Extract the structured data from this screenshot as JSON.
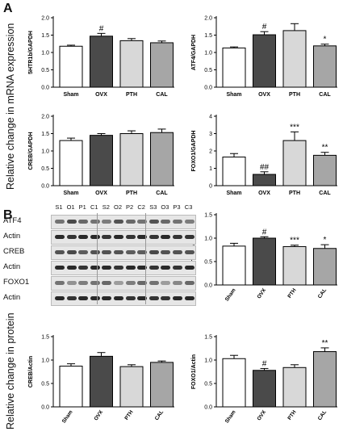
{
  "panels": {
    "a": "A",
    "b": "B"
  },
  "ylabels": {
    "a": "Relative change in mRNA expression",
    "b": "Relative change in protein"
  },
  "blot": {
    "lanes": [
      "S1",
      "O1",
      "P1",
      "C1",
      "S2",
      "O2",
      "P2",
      "C2",
      "S3",
      "O3",
      "P3",
      "C3"
    ],
    "rows": [
      "ATF4",
      "Actin",
      "CREB",
      "Actin",
      "FOXO1",
      "Actin"
    ]
  },
  "colors": {
    "Sham": "#ffffff",
    "OVX": "#4a4a4a",
    "PTH": "#d8d8d8",
    "CAL": "#a6a6a6"
  },
  "chart_data": [
    {
      "id": "htr1b",
      "type": "bar",
      "ylabel": "5HTR1b/GAPDH",
      "ylim": [
        0,
        2
      ],
      "yticks": [
        "0.0",
        "0.5",
        "1.0",
        "1.5",
        "2.0"
      ],
      "tick_values": [
        0,
        0.5,
        1,
        1.5,
        2
      ],
      "categories": [
        "Sham",
        "OVX",
        "PTH",
        "CAL"
      ],
      "values": [
        1.18,
        1.47,
        1.34,
        1.28
      ],
      "errors": [
        0.03,
        0.08,
        0.06,
        0.05
      ],
      "annotations": [
        "",
        "#",
        "",
        ""
      ]
    },
    {
      "id": "atf4_mrna",
      "type": "bar",
      "ylabel": "ATF4/GAPDH",
      "ylim": [
        0,
        2
      ],
      "yticks": [
        "0.0",
        "0.5",
        "1.0",
        "1.5",
        "2.0"
      ],
      "tick_values": [
        0,
        0.5,
        1,
        1.5,
        2
      ],
      "categories": [
        "Sham",
        "OVX",
        "PTH",
        "CAL"
      ],
      "values": [
        1.13,
        1.51,
        1.63,
        1.19
      ],
      "errors": [
        0.03,
        0.09,
        0.2,
        0.05
      ],
      "annotations": [
        "",
        "#",
        "",
        "*"
      ]
    },
    {
      "id": "creb_mrna",
      "type": "bar",
      "ylabel": "CREB/GAPDH",
      "ylim": [
        0,
        2
      ],
      "yticks": [
        "0.0",
        "0.5",
        "1.0",
        "1.5",
        "2.0"
      ],
      "tick_values": [
        0,
        0.5,
        1,
        1.5,
        2
      ],
      "categories": [
        "Sham",
        "OVX",
        "PTH",
        "CAL"
      ],
      "values": [
        1.3,
        1.45,
        1.5,
        1.53
      ],
      "errors": [
        0.07,
        0.05,
        0.08,
        0.1
      ],
      "annotations": [
        "",
        "",
        "",
        ""
      ]
    },
    {
      "id": "foxo1_mrna",
      "type": "bar",
      "ylabel": "FOXO1/GAPDH",
      "ylim": [
        0,
        4
      ],
      "yticks": [
        "0",
        "1",
        "2",
        "3",
        "4"
      ],
      "tick_values": [
        0,
        1,
        2,
        3,
        4
      ],
      "categories": [
        "Sham",
        "OVX",
        "PTH",
        "CAL"
      ],
      "values": [
        1.65,
        0.65,
        2.6,
        1.75
      ],
      "errors": [
        0.2,
        0.15,
        0.5,
        0.17
      ],
      "annotations": [
        "",
        "##",
        "***",
        "**"
      ]
    },
    {
      "id": "atf4_protein",
      "type": "bar",
      "ylabel": "ATF4/Actin",
      "ylim": [
        0,
        1.5
      ],
      "yticks": [
        "0.0",
        "0.5",
        "1.0",
        "1.5"
      ],
      "tick_values": [
        0,
        0.5,
        1,
        1.5
      ],
      "categories": [
        "Sham",
        "OVX",
        "PTH",
        "CAL"
      ],
      "values": [
        0.83,
        1.0,
        0.82,
        0.78
      ],
      "errors": [
        0.06,
        0.03,
        0.03,
        0.08
      ],
      "annotations": [
        "",
        "#",
        "***",
        "*"
      ]
    },
    {
      "id": "creb_protein",
      "type": "bar",
      "ylabel": "CREB/Actin",
      "ylim": [
        0,
        1.5
      ],
      "yticks": [
        "0.0",
        "0.5",
        "1.0",
        "1.5"
      ],
      "tick_values": [
        0,
        0.5,
        1,
        1.5
      ],
      "categories": [
        "Sham",
        "OVX",
        "PTH",
        "CAL"
      ],
      "values": [
        0.87,
        1.08,
        0.86,
        0.95
      ],
      "errors": [
        0.05,
        0.08,
        0.04,
        0.03
      ],
      "annotations": [
        "",
        "",
        "",
        ""
      ]
    },
    {
      "id": "foxo1_protein",
      "type": "bar",
      "ylabel": "FOXO1/Actin",
      "ylim": [
        0,
        1.5
      ],
      "yticks": [
        "0.0",
        "0.5",
        "1.0",
        "1.5"
      ],
      "tick_values": [
        0,
        0.5,
        1,
        1.5
      ],
      "categories": [
        "Sham",
        "OVX",
        "PTH",
        "CAL"
      ],
      "values": [
        1.03,
        0.78,
        0.84,
        1.18
      ],
      "errors": [
        0.07,
        0.04,
        0.06,
        0.08
      ],
      "annotations": [
        "",
        "#",
        "",
        "**"
      ]
    }
  ]
}
